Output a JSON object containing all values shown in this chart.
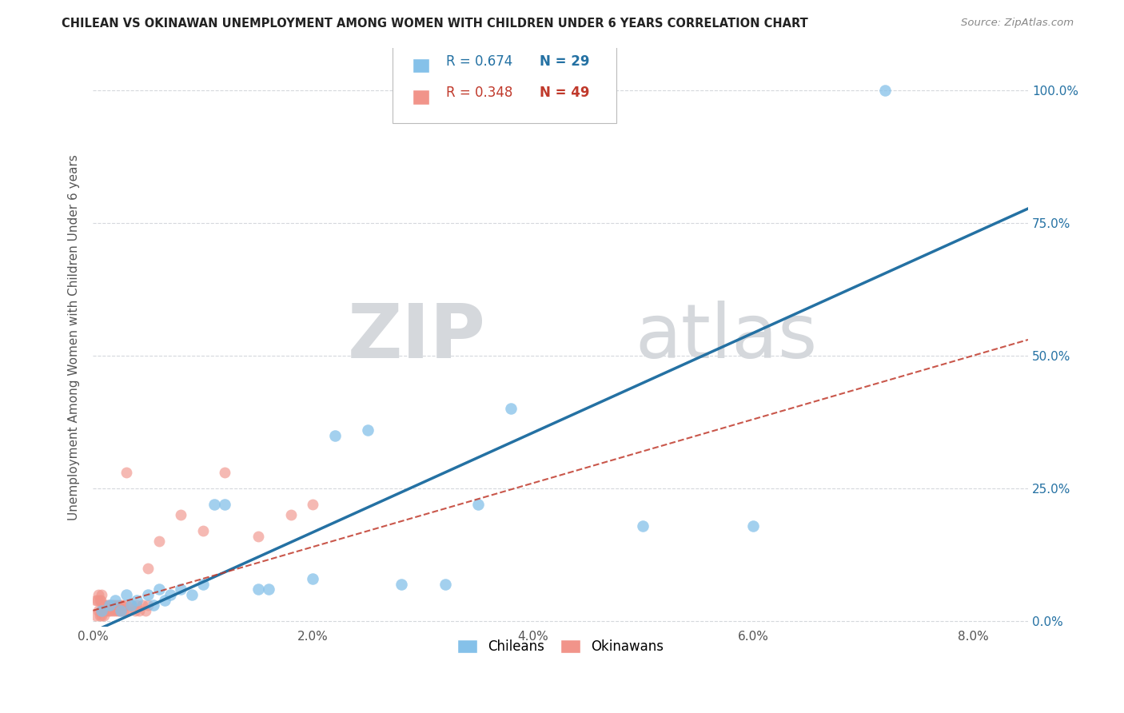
{
  "title": "CHILEAN VS OKINAWAN UNEMPLOYMENT AMONG WOMEN WITH CHILDREN UNDER 6 YEARS CORRELATION CHART",
  "source": "Source: ZipAtlas.com",
  "ylabel": "Unemployment Among Women with Children Under 6 years",
  "xlabel_ticks": [
    "0.0%",
    "2.0%",
    "4.0%",
    "6.0%",
    "8.0%"
  ],
  "xlabel_vals": [
    0.0,
    0.02,
    0.04,
    0.06,
    0.08
  ],
  "ytick_labels_right": [
    "0.0%",
    "25.0%",
    "50.0%",
    "75.0%",
    "100.0%"
  ],
  "ytick_vals": [
    0.0,
    0.25,
    0.5,
    0.75,
    1.0
  ],
  "xlim": [
    0.0,
    0.085
  ],
  "ylim": [
    -0.01,
    1.08
  ],
  "chilean_color": "#85c1e9",
  "okinawan_color": "#f1948a",
  "chilean_line_color": "#2471a3",
  "okinawan_line_color": "#c0392b",
  "watermark_zip": "ZIP",
  "watermark_atlas": "atlas",
  "legend_R_chilean": "R = 0.674",
  "legend_N_chilean": "N = 29",
  "legend_R_okinawan": "R = 0.348",
  "legend_N_okinawan": "N = 49",
  "chilean_scatter_x": [
    0.0008,
    0.0015,
    0.002,
    0.0025,
    0.003,
    0.0035,
    0.004,
    0.005,
    0.0055,
    0.006,
    0.0065,
    0.007,
    0.008,
    0.009,
    0.01,
    0.011,
    0.012,
    0.015,
    0.016,
    0.02,
    0.022,
    0.025,
    0.028,
    0.032,
    0.035,
    0.038,
    0.05,
    0.06,
    0.072
  ],
  "chilean_scatter_y": [
    0.02,
    0.03,
    0.04,
    0.02,
    0.05,
    0.03,
    0.04,
    0.05,
    0.03,
    0.06,
    0.04,
    0.05,
    0.06,
    0.05,
    0.07,
    0.22,
    0.22,
    0.06,
    0.06,
    0.08,
    0.35,
    0.36,
    0.07,
    0.07,
    0.22,
    0.4,
    0.18,
    0.18,
    1.0
  ],
  "okinawan_scatter_x": [
    0.0003,
    0.0005,
    0.0006,
    0.0007,
    0.0008,
    0.0009,
    0.001,
    0.001,
    0.0012,
    0.0013,
    0.0014,
    0.0015,
    0.0016,
    0.0017,
    0.0018,
    0.0019,
    0.002,
    0.0021,
    0.0022,
    0.0023,
    0.0024,
    0.0025,
    0.0026,
    0.0027,
    0.0028,
    0.003,
    0.0032,
    0.0035,
    0.0038,
    0.004,
    0.0042,
    0.0045,
    0.0048,
    0.005,
    0.0003,
    0.0004,
    0.0005,
    0.0006,
    0.0007,
    0.0008,
    0.005,
    0.006,
    0.008,
    0.01,
    0.012,
    0.015,
    0.018,
    0.02,
    0.003
  ],
  "okinawan_scatter_y": [
    0.01,
    0.02,
    0.01,
    0.02,
    0.01,
    0.02,
    0.01,
    0.03,
    0.02,
    0.03,
    0.02,
    0.03,
    0.02,
    0.03,
    0.02,
    0.03,
    0.02,
    0.03,
    0.02,
    0.03,
    0.02,
    0.03,
    0.02,
    0.03,
    0.02,
    0.03,
    0.02,
    0.03,
    0.02,
    0.03,
    0.02,
    0.03,
    0.02,
    0.03,
    0.04,
    0.04,
    0.05,
    0.04,
    0.04,
    0.05,
    0.1,
    0.15,
    0.2,
    0.17,
    0.28,
    0.16,
    0.2,
    0.22,
    0.28
  ],
  "background_color": "#ffffff",
  "grid_color": "#d5d8dc"
}
